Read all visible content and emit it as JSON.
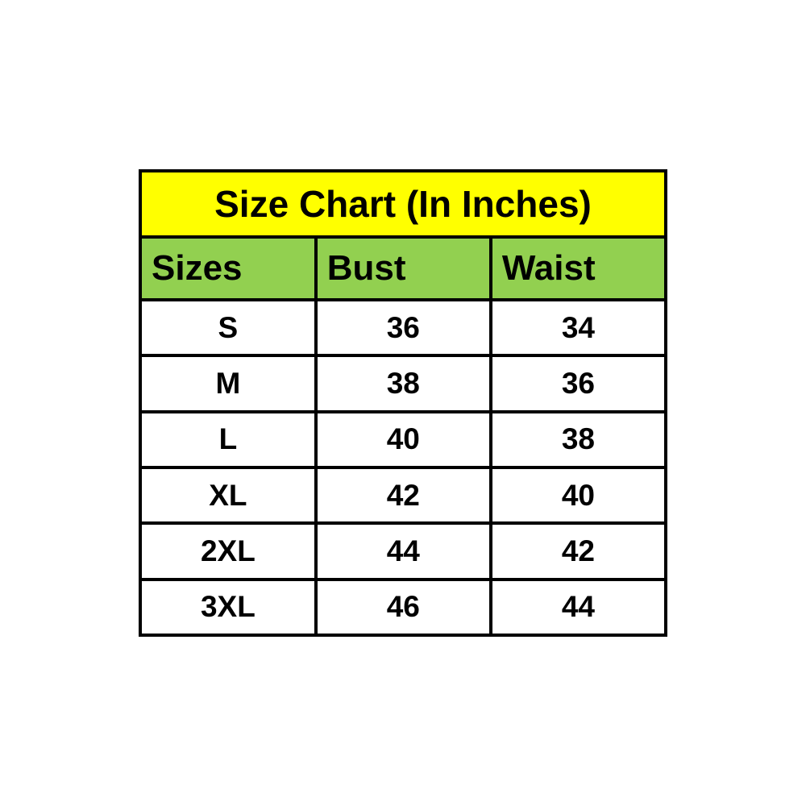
{
  "chart_data": {
    "type": "table",
    "title": "Size Chart (In Inches)",
    "columns": [
      "Sizes",
      "Bust",
      "Waist"
    ],
    "rows": [
      [
        "S",
        "36",
        "34"
      ],
      [
        "M",
        "38",
        "36"
      ],
      [
        "L",
        "40",
        "38"
      ],
      [
        "XL",
        "42",
        "40"
      ],
      [
        "2XL",
        "44",
        "42"
      ],
      [
        "3XL",
        "46",
        "44"
      ]
    ]
  },
  "colors": {
    "title_bg": "#ffff00",
    "header_bg": "#92d050",
    "cell_bg": "#ffffff",
    "border": "#000000",
    "text": "#000000"
  }
}
